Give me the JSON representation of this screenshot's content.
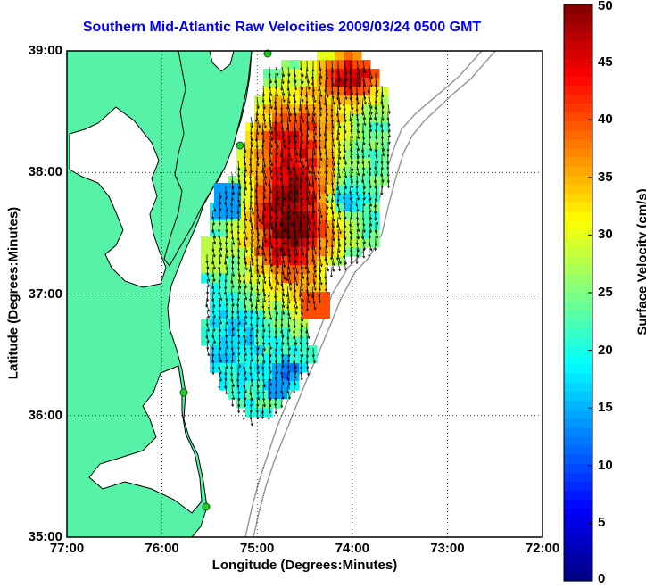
{
  "title": "Southern Mid-Atlantic Raw Velocities 2009/03/24 0500 GMT",
  "x_axis": {
    "label": "Longitude (Degrees:Minutes)",
    "ticks": [
      "77:00",
      "76:00",
      "75:00",
      "74:00",
      "73:00",
      "72:00"
    ]
  },
  "y_axis": {
    "label": "Latitude (Degrees:Minutes)",
    "ticks": [
      "39:00",
      "38:00",
      "37:00",
      "36:00",
      "35:00"
    ]
  },
  "colorbar": {
    "label": "Surface Velocity (cm/s)",
    "ticks": [
      "50",
      "45",
      "40",
      "35",
      "30",
      "25",
      "20",
      "15",
      "10",
      "5",
      "0"
    ],
    "range": [
      0,
      50
    ],
    "colormap": "jet"
  },
  "map": {
    "lon_range": [
      -77,
      -72
    ],
    "lat_range": [
      35,
      39
    ],
    "land_color": "#55f2a8",
    "water_color": "#ffffff",
    "coastline_color": "#000000",
    "bathymetry_color": "#999999",
    "station_marker_color": "#22cc22",
    "grid_style": "dotted"
  }
}
